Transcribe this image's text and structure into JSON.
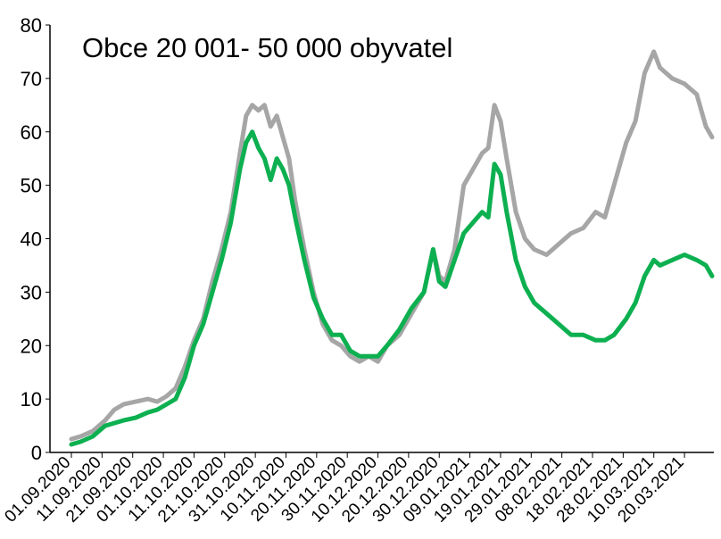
{
  "chart_data": {
    "type": "line",
    "title": "Obce 20 001- 50 000 obyvatel",
    "xlabel": "",
    "ylabel": "",
    "ylim": [
      0,
      80
    ],
    "yticks": [
      0,
      10,
      20,
      30,
      40,
      50,
      60,
      70,
      80
    ],
    "grid": false,
    "legend": "none",
    "x_tick_labels": [
      "01.09.2020",
      "11.09.2020",
      "21.09.2020",
      "01.10.2020",
      "11.10.2020",
      "21.10.2020",
      "31.10.2020",
      "10.11.2020",
      "20.11.2020",
      "30.11.2020",
      "10.12.2020",
      "20.12.2020",
      "30.12.2020",
      "09.01.2021",
      "19.01.2021",
      "29.01.2021",
      "08.02.2021",
      "18.02.2021",
      "28.02.2021",
      "10.03.2021",
      "20.03.2021"
    ],
    "series": [
      {
        "color": "#a6a6a6",
        "points": [
          [
            "01.09.2020",
            2.5
          ],
          [
            "04.09.2020",
            3
          ],
          [
            "08.09.2020",
            4
          ],
          [
            "12.09.2020",
            6
          ],
          [
            "15.09.2020",
            8
          ],
          [
            "18.09.2020",
            9
          ],
          [
            "22.09.2020",
            9.5
          ],
          [
            "26.09.2020",
            10
          ],
          [
            "29.09.2020",
            9.5
          ],
          [
            "02.10.2020",
            10.5
          ],
          [
            "05.10.2020",
            12
          ],
          [
            "08.10.2020",
            16
          ],
          [
            "11.10.2020",
            21
          ],
          [
            "14.10.2020",
            25
          ],
          [
            "17.10.2020",
            32
          ],
          [
            "20.10.2020",
            38
          ],
          [
            "23.10.2020",
            45
          ],
          [
            "26.10.2020",
            56
          ],
          [
            "28.10.2020",
            63
          ],
          [
            "30.10.2020",
            65
          ],
          [
            "01.11.2020",
            64
          ],
          [
            "03.11.2020",
            65
          ],
          [
            "05.11.2020",
            61
          ],
          [
            "07.11.2020",
            63
          ],
          [
            "09.11.2020",
            59
          ],
          [
            "11.11.2020",
            55
          ],
          [
            "13.11.2020",
            47
          ],
          [
            "16.11.2020",
            38
          ],
          [
            "19.11.2020",
            30
          ],
          [
            "22.11.2020",
            24
          ],
          [
            "25.11.2020",
            21
          ],
          [
            "28.11.2020",
            20
          ],
          [
            "01.12.2020",
            18
          ],
          [
            "04.12.2020",
            17
          ],
          [
            "07.12.2020",
            18
          ],
          [
            "10.12.2020",
            17
          ],
          [
            "13.12.2020",
            20
          ],
          [
            "17.12.2020",
            22
          ],
          [
            "21.12.2020",
            26
          ],
          [
            "25.12.2020",
            30
          ],
          [
            "28.12.2020",
            38
          ],
          [
            "30.12.2020",
            33
          ],
          [
            "01.01.2021",
            32
          ],
          [
            "04.01.2021",
            38
          ],
          [
            "07.01.2021",
            50
          ],
          [
            "10.01.2021",
            53
          ],
          [
            "13.01.2021",
            56
          ],
          [
            "15.01.2021",
            57
          ],
          [
            "17.01.2021",
            65
          ],
          [
            "19.01.2021",
            62
          ],
          [
            "21.01.2021",
            55
          ],
          [
            "24.01.2021",
            45
          ],
          [
            "27.01.2021",
            40
          ],
          [
            "30.01.2021",
            38
          ],
          [
            "03.02.2021",
            37
          ],
          [
            "07.02.2021",
            39
          ],
          [
            "11.02.2021",
            41
          ],
          [
            "15.02.2021",
            42
          ],
          [
            "19.02.2021",
            45
          ],
          [
            "22.02.2021",
            44
          ],
          [
            "25.02.2021",
            50
          ],
          [
            "01.03.2021",
            58
          ],
          [
            "04.03.2021",
            62
          ],
          [
            "07.03.2021",
            71
          ],
          [
            "10.03.2021",
            75
          ],
          [
            "12.03.2021",
            72
          ],
          [
            "16.03.2021",
            70
          ],
          [
            "20.03.2021",
            69
          ],
          [
            "24.03.2021",
            67
          ],
          [
            "27.03.2021",
            61
          ],
          [
            "29.03.2021",
            59
          ]
        ]
      },
      {
        "color": "#0db050",
        "points": [
          [
            "01.09.2020",
            1.5
          ],
          [
            "04.09.2020",
            2
          ],
          [
            "08.09.2020",
            3
          ],
          [
            "12.09.2020",
            5
          ],
          [
            "15.09.2020",
            5.5
          ],
          [
            "18.09.2020",
            6
          ],
          [
            "22.09.2020",
            6.5
          ],
          [
            "26.09.2020",
            7.5
          ],
          [
            "29.09.2020",
            8
          ],
          [
            "02.10.2020",
            9
          ],
          [
            "05.10.2020",
            10
          ],
          [
            "08.10.2020",
            14
          ],
          [
            "11.10.2020",
            20
          ],
          [
            "14.10.2020",
            24
          ],
          [
            "17.10.2020",
            30
          ],
          [
            "20.10.2020",
            36
          ],
          [
            "23.10.2020",
            43
          ],
          [
            "26.10.2020",
            53
          ],
          [
            "28.10.2020",
            58
          ],
          [
            "30.10.2020",
            60
          ],
          [
            "01.11.2020",
            57
          ],
          [
            "03.11.2020",
            55
          ],
          [
            "05.11.2020",
            51
          ],
          [
            "07.11.2020",
            55
          ],
          [
            "09.11.2020",
            53
          ],
          [
            "11.11.2020",
            50
          ],
          [
            "13.11.2020",
            44
          ],
          [
            "16.11.2020",
            36
          ],
          [
            "19.11.2020",
            29
          ],
          [
            "22.11.2020",
            25
          ],
          [
            "25.11.2020",
            22
          ],
          [
            "28.11.2020",
            22
          ],
          [
            "01.12.2020",
            19
          ],
          [
            "04.12.2020",
            18
          ],
          [
            "07.12.2020",
            18
          ],
          [
            "10.12.2020",
            18
          ],
          [
            "13.12.2020",
            20
          ],
          [
            "17.12.2020",
            23
          ],
          [
            "21.12.2020",
            27
          ],
          [
            "25.12.2020",
            30
          ],
          [
            "28.12.2020",
            38
          ],
          [
            "30.12.2020",
            32
          ],
          [
            "01.01.2021",
            31
          ],
          [
            "04.01.2021",
            36
          ],
          [
            "07.01.2021",
            41
          ],
          [
            "10.01.2021",
            43
          ],
          [
            "13.01.2021",
            45
          ],
          [
            "15.01.2021",
            44
          ],
          [
            "17.01.2021",
            54
          ],
          [
            "19.01.2021",
            52
          ],
          [
            "21.01.2021",
            45
          ],
          [
            "24.01.2021",
            36
          ],
          [
            "27.01.2021",
            31
          ],
          [
            "30.01.2021",
            28
          ],
          [
            "03.02.2021",
            26
          ],
          [
            "07.02.2021",
            24
          ],
          [
            "11.02.2021",
            22
          ],
          [
            "15.02.2021",
            22
          ],
          [
            "19.02.2021",
            21
          ],
          [
            "22.02.2021",
            21
          ],
          [
            "25.02.2021",
            22
          ],
          [
            "01.03.2021",
            25
          ],
          [
            "04.03.2021",
            28
          ],
          [
            "07.03.2021",
            33
          ],
          [
            "10.03.2021",
            36
          ],
          [
            "12.03.2021",
            35
          ],
          [
            "16.03.2021",
            36
          ],
          [
            "20.03.2021",
            37
          ],
          [
            "24.03.2021",
            36
          ],
          [
            "27.03.2021",
            35
          ],
          [
            "29.03.2021",
            33
          ]
        ]
      }
    ]
  }
}
